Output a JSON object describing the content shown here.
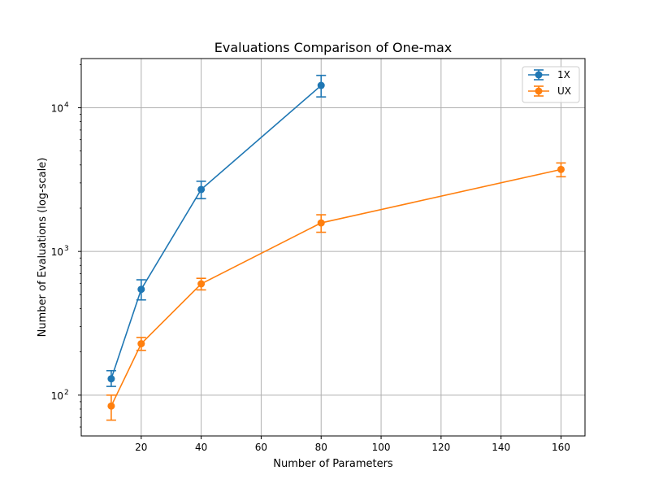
{
  "chart_data": {
    "type": "line",
    "title": "Evaluations Comparison of One-max",
    "xlabel": "Number of Parameters",
    "ylabel": "Number of Evaluations (log-scale)",
    "xlim": [
      0,
      168
    ],
    "ylim": [
      52,
      22000
    ],
    "yscale": "log",
    "grid": true,
    "legend_position": "top-right",
    "x_ticks": [
      20,
      40,
      60,
      80,
      100,
      120,
      140,
      160
    ],
    "y_ticks": [
      {
        "value": 100,
        "base": "10",
        "exp": "2"
      },
      {
        "value": 1000,
        "base": "10",
        "exp": "3"
      },
      {
        "value": 10000,
        "base": "10",
        "exp": "4"
      }
    ],
    "series": [
      {
        "name": "1X",
        "color": "#1f77b4",
        "x": [
          10,
          20,
          40,
          80
        ],
        "y": [
          130,
          545,
          2700,
          14300
        ],
        "err_low": [
          115,
          460,
          2330,
          11900
        ],
        "err_high": [
          148,
          635,
          3080,
          16800
        ]
      },
      {
        "name": "UX",
        "color": "#ff7f0e",
        "x": [
          10,
          20,
          40,
          80,
          160
        ],
        "y": [
          84,
          228,
          595,
          1580,
          3720
        ],
        "err_low": [
          67,
          205,
          540,
          1360,
          3310
        ],
        "err_high": [
          100,
          252,
          650,
          1800,
          4130
        ]
      }
    ]
  }
}
